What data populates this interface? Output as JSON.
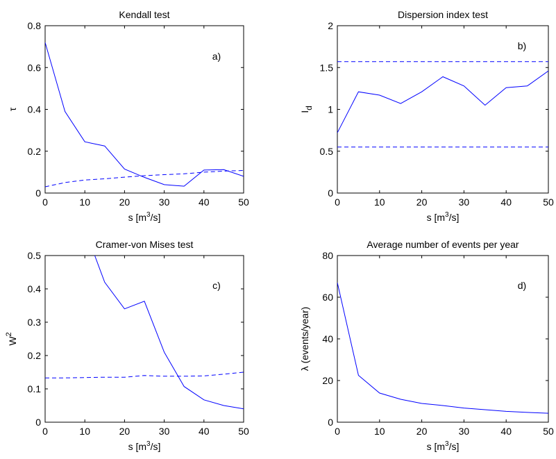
{
  "chart_data": [
    {
      "type": "line",
      "title": "Kendall test",
      "annotation": "a)",
      "xlabel": "s [m³/s]",
      "ylabel": "τ",
      "xlim": [
        0,
        50
      ],
      "ylim": [
        0,
        0.8
      ],
      "xticks": [
        0,
        10,
        20,
        30,
        40,
        50
      ],
      "yticks": [
        0,
        0.2,
        0.4,
        0.6,
        0.8
      ],
      "ytick_labels": [
        "0",
        "0.2",
        "0.4",
        "0.6",
        "0.8"
      ],
      "grid": false,
      "series": [
        {
          "style": "solid",
          "color": "#0000ff",
          "x": [
            0,
            5,
            10,
            15,
            20,
            25,
            30,
            35,
            40,
            45,
            50
          ],
          "y": [
            0.72,
            0.39,
            0.245,
            0.225,
            0.115,
            0.075,
            0.04,
            0.033,
            0.11,
            0.112,
            0.08
          ]
        },
        {
          "style": "dashed",
          "color": "#0000ff",
          "x": [
            0,
            5,
            10,
            15,
            20,
            25,
            30,
            35,
            40,
            45,
            50
          ],
          "y": [
            0.03,
            0.05,
            0.062,
            0.068,
            0.076,
            0.083,
            0.088,
            0.092,
            0.1,
            0.105,
            0.108
          ]
        }
      ]
    },
    {
      "type": "line",
      "title": "Dispersion index test",
      "annotation": "b)",
      "xlabel": "s [m³/s]",
      "ylabel": "I",
      "ylabel_sub": "d",
      "xlim": [
        0,
        50
      ],
      "ylim": [
        0,
        2
      ],
      "xticks": [
        0,
        10,
        20,
        30,
        40,
        50
      ],
      "yticks": [
        0,
        0.5,
        1,
        1.5,
        2
      ],
      "ytick_labels": [
        "0",
        "0.5",
        "1",
        "1.5",
        "2"
      ],
      "grid": false,
      "series": [
        {
          "style": "solid",
          "color": "#0000ff",
          "x": [
            0,
            5,
            10,
            15,
            20,
            25,
            30,
            35,
            40,
            45,
            50
          ],
          "y": [
            0.72,
            1.21,
            1.17,
            1.07,
            1.21,
            1.39,
            1.28,
            1.05,
            1.26,
            1.28,
            1.46
          ]
        },
        {
          "style": "dashed",
          "color": "#0000ff",
          "x": [
            0,
            50
          ],
          "y": [
            1.57,
            1.57
          ]
        },
        {
          "style": "dashed",
          "color": "#0000ff",
          "x": [
            0,
            50
          ],
          "y": [
            0.55,
            0.55
          ]
        }
      ]
    },
    {
      "type": "line",
      "title": "Cramer-von Mises test",
      "annotation": "c)",
      "xlabel": "s [m³/s]",
      "ylabel": "W²",
      "xlim": [
        0,
        50
      ],
      "ylim": [
        0,
        0.5
      ],
      "xticks": [
        0,
        10,
        20,
        30,
        40,
        50
      ],
      "yticks": [
        0,
        0.1,
        0.2,
        0.3,
        0.4,
        0.5
      ],
      "ytick_labels": [
        "0",
        "0.1",
        "0.2",
        "0.3",
        "0.4",
        "0.5"
      ],
      "grid": false,
      "series": [
        {
          "style": "solid",
          "color": "#0000ff",
          "x": [
            12.5,
            15,
            20,
            25,
            30,
            35,
            40,
            45,
            50
          ],
          "y": [
            0.5,
            0.42,
            0.34,
            0.363,
            0.21,
            0.107,
            0.067,
            0.05,
            0.04
          ]
        },
        {
          "style": "dashed",
          "color": "#0000ff",
          "x": [
            0,
            5,
            10,
            15,
            20,
            25,
            30,
            35,
            40,
            45,
            50
          ],
          "y": [
            0.133,
            0.133,
            0.134,
            0.135,
            0.135,
            0.14,
            0.138,
            0.138,
            0.139,
            0.144,
            0.15
          ]
        }
      ]
    },
    {
      "type": "line",
      "title": "Average number of events per year",
      "annotation": "d)",
      "xlabel": "s [m³/s]",
      "ylabel": "λ (events/year)",
      "xlim": [
        0,
        50
      ],
      "ylim": [
        0,
        80
      ],
      "xticks": [
        0,
        10,
        20,
        30,
        40,
        50
      ],
      "yticks": [
        0,
        20,
        40,
        60,
        80
      ],
      "ytick_labels": [
        "0",
        "20",
        "40",
        "60",
        "80"
      ],
      "grid": false,
      "series": [
        {
          "style": "solid",
          "color": "#0000ff",
          "x": [
            0,
            5,
            10,
            15,
            20,
            25,
            30,
            35,
            40,
            45,
            50
          ],
          "y": [
            67,
            22.5,
            14,
            11,
            9,
            8,
            6.8,
            6,
            5.2,
            4.7,
            4.3
          ]
        }
      ]
    }
  ]
}
